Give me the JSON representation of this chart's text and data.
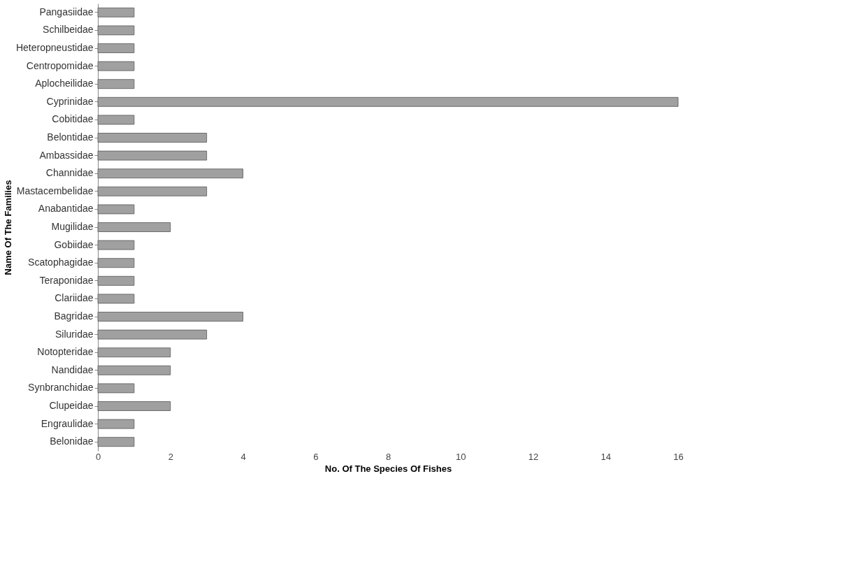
{
  "chart_data": {
    "type": "bar",
    "orientation": "horizontal",
    "xlabel": "No. Of The Species Of Fishes",
    "ylabel": "Name Of The Families",
    "categories": [
      "Pangasiidae",
      "Schilbeidae",
      "Heteropneustidae",
      "Centropomidae",
      "Aplocheilidae",
      "Cyprinidae",
      "Cobitidae",
      "Belontidae",
      "Ambassidae",
      "Channidae",
      "Mastacembelidae",
      "Anabantidae",
      "Mugilidae",
      "Gobiidae",
      "Scatophagidae",
      "Teraponidae",
      "Clariidae",
      "Bagridae",
      "Siluridae",
      "Notopteridae",
      "Nandidae",
      "Synbranchidae",
      "Clupeidae",
      "Engraulidae",
      "Belonidae"
    ],
    "values": [
      1,
      1,
      1,
      1,
      1,
      16,
      1,
      3,
      3,
      4,
      3,
      1,
      2,
      1,
      1,
      1,
      1,
      4,
      3,
      2,
      2,
      1,
      2,
      1,
      1
    ],
    "color": "#a0a0a0",
    "xlim": [
      0,
      16
    ],
    "xticks": [
      0,
      2,
      4,
      6,
      8,
      10,
      12,
      14,
      16
    ],
    "grid": false
  }
}
